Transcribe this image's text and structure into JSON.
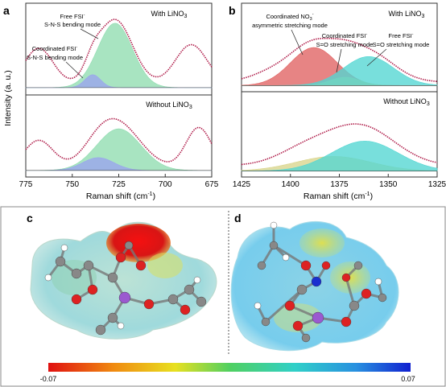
{
  "panels": {
    "a": {
      "letter": "a",
      "top_label": "With LiNO",
      "top_label_sub": "3",
      "bottom_label": "Without LiNO",
      "bottom_label_sub": "3",
      "annotation_free": [
        "Free FSI",
        "S-N-S bending mode"
      ],
      "annotation_coord": [
        "Coordinated FSI",
        "S-N-S bending mode"
      ],
      "ylabel": "Intensity (a. u.)",
      "xlabel": "Raman shift (cm",
      "xlabel_tail": ")",
      "xticks": [
        "775",
        "750",
        "725",
        "700",
        "675"
      ]
    },
    "b": {
      "letter": "b",
      "top_label": "With LiNO",
      "top_label_sub": "3",
      "bottom_label": "Without LiNO",
      "bottom_label_sub": "3",
      "annotation_no3": [
        "Coordinated NO",
        "asymmetric stretching mode"
      ],
      "annotation_coord": [
        "Coordinated FSI",
        "S=O stretching mode"
      ],
      "annotation_free": [
        "Free FSI",
        "S=O stretching mode"
      ],
      "xlabel": "Raman shift (cm",
      "xlabel_tail": ")",
      "xticks": [
        "1425",
        "1400",
        "1375",
        "1350",
        "1325"
      ]
    },
    "c": {
      "letter": "c"
    },
    "d": {
      "letter": "d"
    },
    "colorbar": {
      "min_label": "-0.07",
      "max_label": "0.07"
    }
  },
  "chart_data": [
    {
      "type": "area",
      "panel": "a",
      "xlabel": "Raman shift (cm-1)",
      "ylabel": "Intensity (a. u.)",
      "xlim": [
        775,
        675
      ],
      "subplots": [
        {
          "label": "With LiNO3",
          "series": [
            {
              "name": "Free FSI- S-N-S bending mode",
              "color": "#8fdcb0",
              "peak_center": 727,
              "peak_height": 0.9,
              "fwhm": 22
            },
            {
              "name": "Coordinated FSI- S-N-S bending mode",
              "color": "#9aa4ee",
              "peak_center": 739,
              "peak_height": 0.18,
              "fwhm": 10
            }
          ]
        },
        {
          "label": "Without LiNO3",
          "series": [
            {
              "color": "#8fdcb0",
              "peak_center": 725,
              "peak_height": 0.65,
              "fwhm": 28
            },
            {
              "color": "#9aa4ee",
              "peak_center": 736,
              "peak_height": 0.2,
              "fwhm": 20
            }
          ]
        }
      ]
    },
    {
      "type": "area",
      "panel": "b",
      "xlabel": "Raman shift (cm-1)",
      "ylabel": "Intensity (a. u.)",
      "xlim": [
        1425,
        1325
      ],
      "subplots": [
        {
          "label": "With LiNO3",
          "series": [
            {
              "name": "Coordinated NO3- asymmetric stretching mode",
              "color": "#e06262",
              "peak_center": 1388,
              "peak_height": 0.55,
              "fwhm": 28
            },
            {
              "name": "Coordinated FSI- S=O stretching mode",
              "color": "#d9d58c",
              "peak_center": 1372,
              "peak_height": 0.12,
              "fwhm": 18
            },
            {
              "name": "Free FSI- S=O stretching mode",
              "color": "#52d6d2",
              "peak_center": 1360,
              "peak_height": 0.42,
              "fwhm": 30
            }
          ]
        },
        {
          "label": "Without LiNO3",
          "series": [
            {
              "color": "#d9d58c",
              "peak_center": 1378,
              "peak_height": 0.22,
              "fwhm": 45
            },
            {
              "color": "#52d6d2",
              "peak_center": 1362,
              "peak_height": 0.45,
              "fwhm": 40
            }
          ]
        }
      ]
    }
  ],
  "colors": {
    "fit_line": "#b01e4b",
    "axis": "#333333",
    "divider": "#555555",
    "border": "#888888"
  }
}
